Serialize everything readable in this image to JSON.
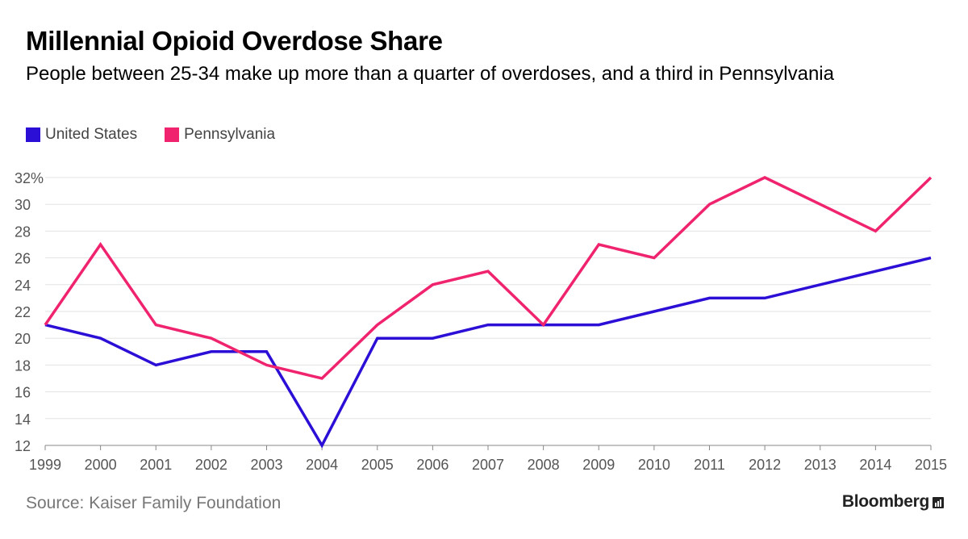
{
  "chart_data": {
    "type": "line",
    "title": "Millennial Opioid Overdose Share",
    "subtitle": "People between 25-34 make up more than a quarter of overdoses, and a third in Pennsylvania",
    "xlabel": "",
    "ylabel": "",
    "categories": [
      "1999",
      "2000",
      "2001",
      "2002",
      "2003",
      "2004",
      "2005",
      "2006",
      "2007",
      "2008",
      "2009",
      "2010",
      "2011",
      "2012",
      "2013",
      "2014",
      "2015"
    ],
    "ylim": [
      12,
      32
    ],
    "yticks": [
      12,
      14,
      16,
      18,
      20,
      22,
      24,
      26,
      28,
      30,
      32
    ],
    "ytick_labels": [
      "12",
      "14",
      "16",
      "18",
      "20",
      "22",
      "24",
      "26",
      "28",
      "30",
      "32%"
    ],
    "grid": true,
    "legend_position": "top-left",
    "series": [
      {
        "name": "United States",
        "color": "#2b0fd6",
        "values": [
          21,
          20,
          18,
          19,
          19,
          12,
          20,
          20,
          21,
          21,
          21,
          22,
          23,
          23,
          24,
          25,
          26
        ]
      },
      {
        "name": "Pennsylvania",
        "color": "#f0246e",
        "values": [
          21,
          27,
          21,
          20,
          18,
          17,
          21,
          24,
          25,
          21,
          27,
          26,
          30,
          32,
          30,
          28,
          32
        ]
      }
    ],
    "source": "Source: Kaiser Family Foundation",
    "brand": "Bloomberg"
  }
}
